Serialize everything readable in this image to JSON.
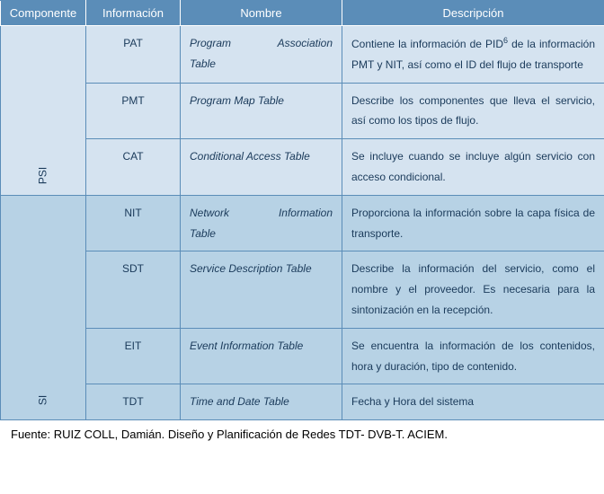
{
  "colors": {
    "header_bg": "#5b8db8",
    "header_text": "#ffffff",
    "psi_bg": "#d5e3f0",
    "si_bg": "#b7d2e5",
    "border": "#5b8db8",
    "text": "#1a3a5a"
  },
  "headers": {
    "componente": "Componente",
    "informacion": "Información",
    "nombre": "Nombre",
    "descripcion": "Descripción"
  },
  "groups": {
    "psi": "PSI",
    "si": "SI"
  },
  "rows": {
    "pat": {
      "info": "PAT",
      "name_w1": "Program",
      "name_w2": "Association",
      "name_line2": "Table",
      "desc_pre": "Contiene la información de PID",
      "desc_sup": "6",
      "desc_post": " de la información PMT y NIT, así como el ID del flujo de transporte"
    },
    "pmt": {
      "info": "PMT",
      "name": "Program Map Table",
      "desc": "Describe los componentes que lleva el servicio, así como los tipos de flujo."
    },
    "cat": {
      "info": "CAT",
      "name": "Conditional Access Table",
      "desc": "Se incluye cuando se incluye algún servicio con acceso condicional."
    },
    "nit": {
      "info": "NIT",
      "name_w1": "Network",
      "name_w2": "Information",
      "name_line2": "Table",
      "desc": "Proporciona la información sobre la capa física de transporte."
    },
    "sdt": {
      "info": "SDT",
      "name": "Service Description Table",
      "desc": "Describe la información del servicio, como el nombre y el proveedor. Es necesaria para la sintonización en la recepción."
    },
    "eit": {
      "info": "EIT",
      "name": "Event Information Table",
      "desc": "Se encuentra la información de los contenidos, hora y duración, tipo de contenido."
    },
    "tdt": {
      "info": "TDT",
      "name": "Time and Date Table",
      "desc": "Fecha y Hora del sistema"
    }
  },
  "caption": "Fuente: RUIZ COLL, Damián. Diseño y Planificación de Redes TDT- DVB-T. ACIEM."
}
